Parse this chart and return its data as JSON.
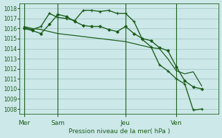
{
  "bg_color": "#cce8e8",
  "grid_color": "#aacccc",
  "line_color": "#1a5c1a",
  "title": "Pression niveau de la mer( hPa )",
  "ylim": [
    1007.5,
    1018.5
  ],
  "yticks": [
    1008,
    1009,
    1010,
    1011,
    1012,
    1013,
    1014,
    1015,
    1016,
    1017,
    1018
  ],
  "day_labels": [
    "Mer",
    "Sam",
    "Jeu",
    "Ven"
  ],
  "day_positions": [
    0,
    4,
    12,
    18
  ],
  "xlim": [
    -0.5,
    23
  ],
  "line1_x": [
    0,
    1,
    2,
    3,
    4,
    5,
    6,
    7,
    8,
    9,
    10,
    11,
    12,
    13,
    14,
    15,
    16,
    17,
    18,
    19,
    20,
    21
  ],
  "line1_y": [
    1016.1,
    1015.9,
    1016.2,
    1017.5,
    1017.1,
    1017.0,
    1016.8,
    1017.8,
    1017.8,
    1017.7,
    1017.8,
    1017.5,
    1017.5,
    1016.7,
    1014.9,
    1014.2,
    1012.4,
    1011.8,
    1011.0,
    1010.5,
    1007.9,
    1008.0
  ],
  "line2_x": [
    0,
    1,
    2,
    3,
    4,
    5,
    6,
    7,
    8,
    9,
    10,
    11,
    12,
    13,
    14,
    15,
    16,
    17,
    18,
    19,
    20,
    21
  ],
  "line2_y": [
    1016.0,
    1015.8,
    1015.5,
    1016.4,
    1017.4,
    1017.2,
    1016.7,
    1016.3,
    1016.2,
    1016.2,
    1015.9,
    1015.7,
    1016.2,
    1015.5,
    1015.0,
    1014.8,
    1014.1,
    1013.8,
    1012.2,
    1010.8,
    1010.2,
    1010.0
  ],
  "line3_x": [
    0,
    1,
    2,
    3,
    4,
    5,
    6,
    7,
    8,
    9,
    10,
    11,
    12,
    13,
    14,
    15,
    16,
    17,
    18,
    19,
    20,
    21
  ],
  "line3_y": [
    1016.2,
    1016.0,
    1015.9,
    1015.7,
    1015.5,
    1015.4,
    1015.3,
    1015.2,
    1015.1,
    1015.0,
    1014.9,
    1014.8,
    1014.7,
    1014.5,
    1014.3,
    1014.1,
    1014.0,
    1013.0,
    1011.8,
    1011.5,
    1011.7,
    1010.3
  ]
}
